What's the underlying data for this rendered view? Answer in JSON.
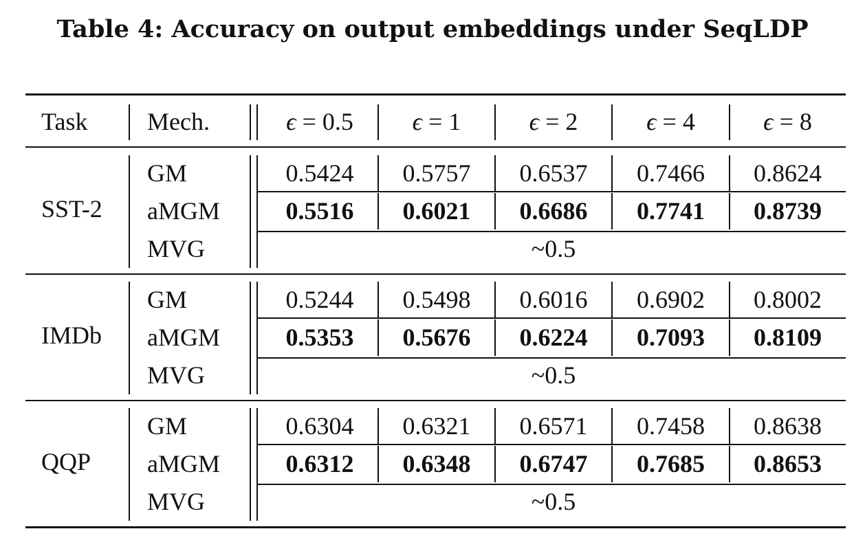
{
  "caption": "Table 4: Accuracy on output embeddings under SeqLDP",
  "header": {
    "task": "Task",
    "mech": "Mech.",
    "eps_symbol": "ϵ",
    "eps_eq": "=",
    "eps": [
      "0.5",
      "1",
      "2",
      "4",
      "8"
    ]
  },
  "groups": [
    {
      "task": "SST-2",
      "rows": [
        {
          "mech": "GM",
          "values": [
            "0.5424",
            "0.5757",
            "0.6537",
            "0.7466",
            "0.8624"
          ]
        },
        {
          "mech": "aMGM",
          "values": [
            "0.5516",
            "0.6021",
            "0.6686",
            "0.7741",
            "0.8739"
          ]
        },
        {
          "mech": "MVG",
          "span": "~0.5"
        }
      ]
    },
    {
      "task": "IMDb",
      "rows": [
        {
          "mech": "GM",
          "values": [
            "0.5244",
            "0.5498",
            "0.6016",
            "0.6902",
            "0.8002"
          ]
        },
        {
          "mech": "aMGM",
          "values": [
            "0.5353",
            "0.5676",
            "0.6224",
            "0.7093",
            "0.8109"
          ]
        },
        {
          "mech": "MVG",
          "span": "~0.5"
        }
      ]
    },
    {
      "task": "QQP",
      "rows": [
        {
          "mech": "GM",
          "values": [
            "0.6304",
            "0.6321",
            "0.6571",
            "0.7458",
            "0.8638"
          ]
        },
        {
          "mech": "aMGM",
          "values": [
            "0.6312",
            "0.6348",
            "0.6747",
            "0.7685",
            "0.8653"
          ]
        },
        {
          "mech": "MVG",
          "span": "~0.5"
        }
      ]
    }
  ]
}
